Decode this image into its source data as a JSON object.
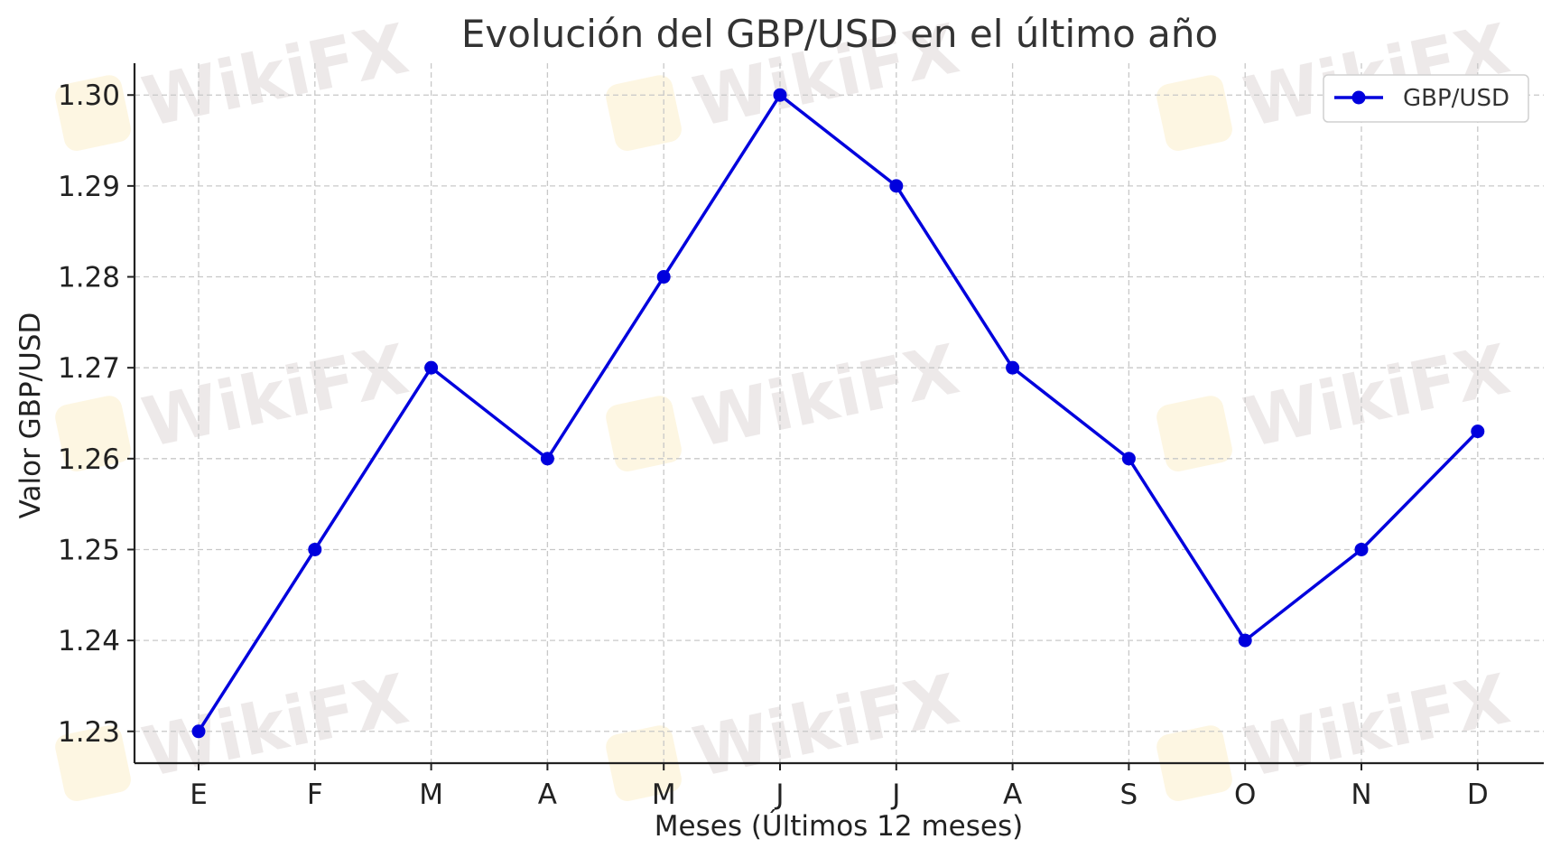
{
  "watermark": {
    "text": "WikiFX",
    "logo_icon": "wikifx-eagle-icon"
  },
  "chart_data": {
    "type": "line",
    "title": "Evolución del GBP/USD en el último año",
    "xlabel": "Meses (Últimos 12 meses)",
    "ylabel": "Valor GBP/USD",
    "categories": [
      "E",
      "F",
      "M",
      "A",
      "M",
      "J",
      "J",
      "A",
      "S",
      "O",
      "N",
      "D"
    ],
    "series": [
      {
        "name": "GBP/USD",
        "color": "#0000dd",
        "marker": "circle",
        "values": [
          1.23,
          1.25,
          1.27,
          1.26,
          1.28,
          1.3,
          1.29,
          1.27,
          1.26,
          1.24,
          1.25,
          1.263
        ]
      }
    ],
    "ylim": [
      1.2265,
      1.3035
    ],
    "yticks": [
      "1.23",
      "1.24",
      "1.25",
      "1.26",
      "1.27",
      "1.28",
      "1.29",
      "1.30"
    ],
    "ytick_values": [
      1.23,
      1.24,
      1.25,
      1.26,
      1.27,
      1.28,
      1.29,
      1.3
    ],
    "grid": true,
    "legend_position": "top-right"
  }
}
